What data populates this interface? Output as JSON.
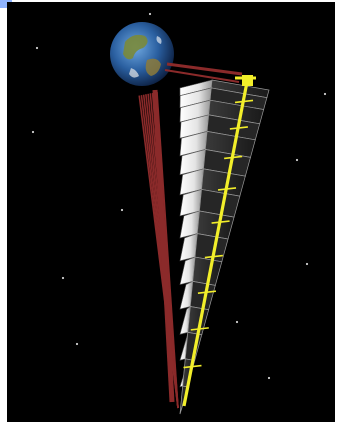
{
  "scene": {
    "subject": "space-elevator-structure",
    "colors": {
      "space": "#000000",
      "frame_border": "#ffffff",
      "panel_light": "#e9e9e9",
      "panel_shadow": "#8a8a8a",
      "panel_dark": "#2e2e2e",
      "strut_red": "#8b2a2a",
      "rail_yellow": "#f2ee2a",
      "earth_ocean": "#2a5fa0",
      "earth_land": "#7a8a3a",
      "star": "#cfcfcf",
      "corner_mark": "#8fb4ff"
    },
    "icons": [
      "earth-globe-icon",
      "star-icon"
    ]
  }
}
